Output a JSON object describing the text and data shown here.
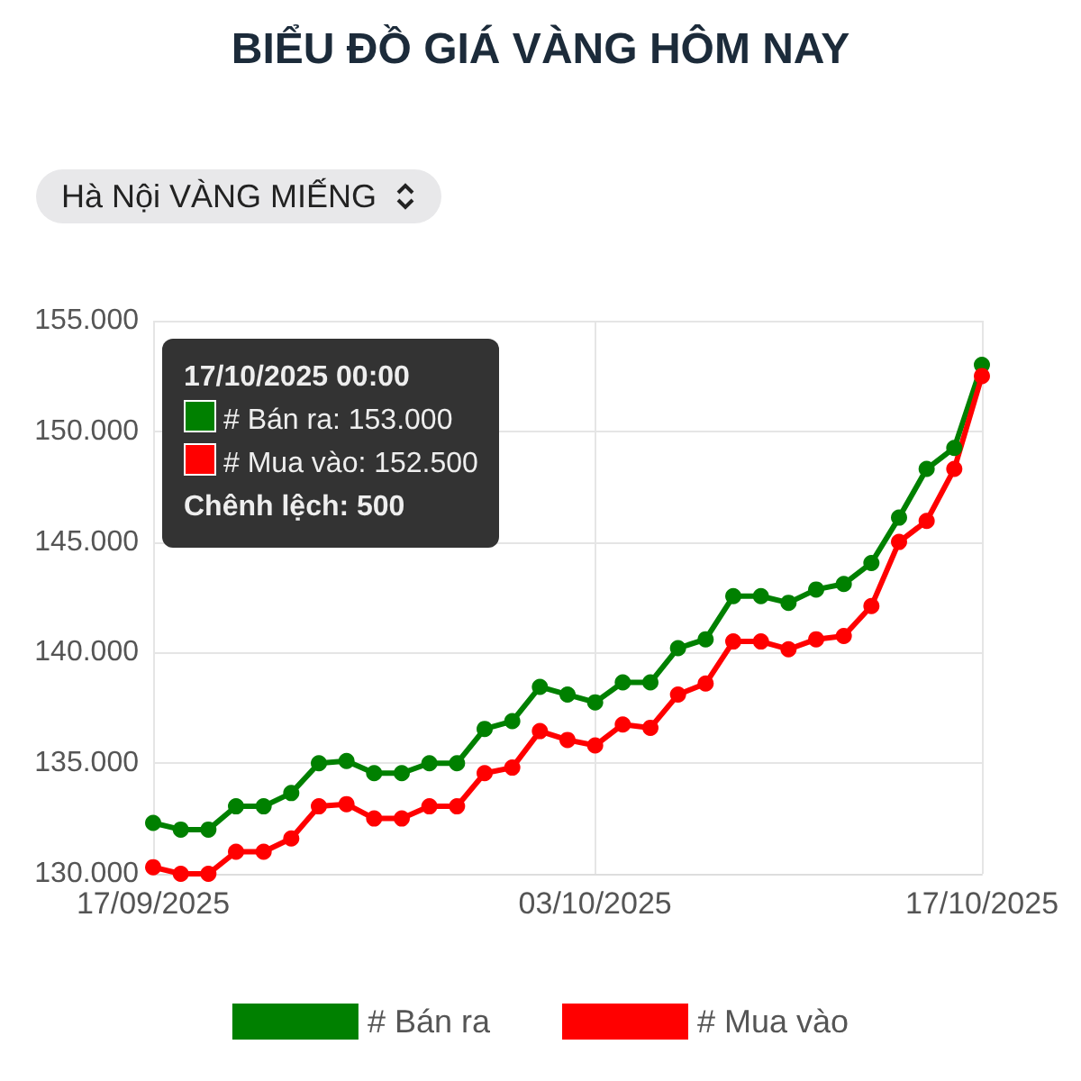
{
  "chart_data": {
    "type": "line",
    "title": "BIỂU ĐỒ GIÁ VÀNG HÔM NAY",
    "subtitle": "Hà Nội VÀNG MIẾNG",
    "x": [
      "2025-09-17",
      "2025-09-18",
      "2025-09-19",
      "2025-09-20",
      "2025-09-21",
      "2025-09-22",
      "2025-09-23",
      "2025-09-24",
      "2025-09-25",
      "2025-09-26",
      "2025-09-27",
      "2025-09-28",
      "2025-09-29",
      "2025-09-30",
      "2025-10-01",
      "2025-10-02",
      "2025-10-03",
      "2025-10-04",
      "2025-10-05",
      "2025-10-06",
      "2025-10-07",
      "2025-10-08",
      "2025-10-09",
      "2025-10-10",
      "2025-10-11",
      "2025-10-12",
      "2025-10-13",
      "2025-10-14",
      "2025-10-15",
      "2025-10-16",
      "2025-10-17"
    ],
    "series": [
      {
        "name": "# Bán ra",
        "color": "#008000",
        "values": [
          132300,
          132000,
          132000,
          133050,
          133050,
          133650,
          135000,
          135100,
          134550,
          134550,
          135000,
          135000,
          136550,
          136900,
          138450,
          138100,
          137750,
          138650,
          138650,
          140200,
          140600,
          142550,
          142550,
          142250,
          142850,
          143100,
          144050,
          146100,
          148300,
          149250,
          153000
        ]
      },
      {
        "name": "# Mua vào",
        "color": "#ff0000",
        "values": [
          130300,
          130000,
          130000,
          131000,
          131000,
          131600,
          133050,
          133150,
          132500,
          132500,
          133050,
          133050,
          134550,
          134800,
          136450,
          136050,
          135800,
          136750,
          136600,
          138100,
          138600,
          140500,
          140500,
          140150,
          140600,
          140750,
          142100,
          145000,
          145950,
          148300,
          152500
        ]
      }
    ],
    "xlim": [
      "2025-09-17",
      "2025-10-17"
    ],
    "xticks": [
      {
        "value": "2025-09-17",
        "label": "17/09/2025"
      },
      {
        "value": "2025-10-03",
        "label": "03/10/2025"
      },
      {
        "value": "2025-10-17",
        "label": "17/10/2025"
      }
    ],
    "ylim": [
      130000,
      155000
    ],
    "yticks": [
      {
        "value": 130000,
        "label": "130.000"
      },
      {
        "value": 135000,
        "label": "135.000"
      },
      {
        "value": 140000,
        "label": "140.000"
      },
      {
        "value": 145000,
        "label": "145.000"
      },
      {
        "value": 150000,
        "label": "150.000"
      },
      {
        "value": 155000,
        "label": "155.000"
      }
    ],
    "annotations": [
      "17/10/2025 00:00",
      "# Bán ra: 153.000",
      "# Mua vào: 152.500",
      "Chênh lệch: 500"
    ],
    "grid": true,
    "legend": "bottom",
    "marker": "circle",
    "line_style": "solid"
  }
}
